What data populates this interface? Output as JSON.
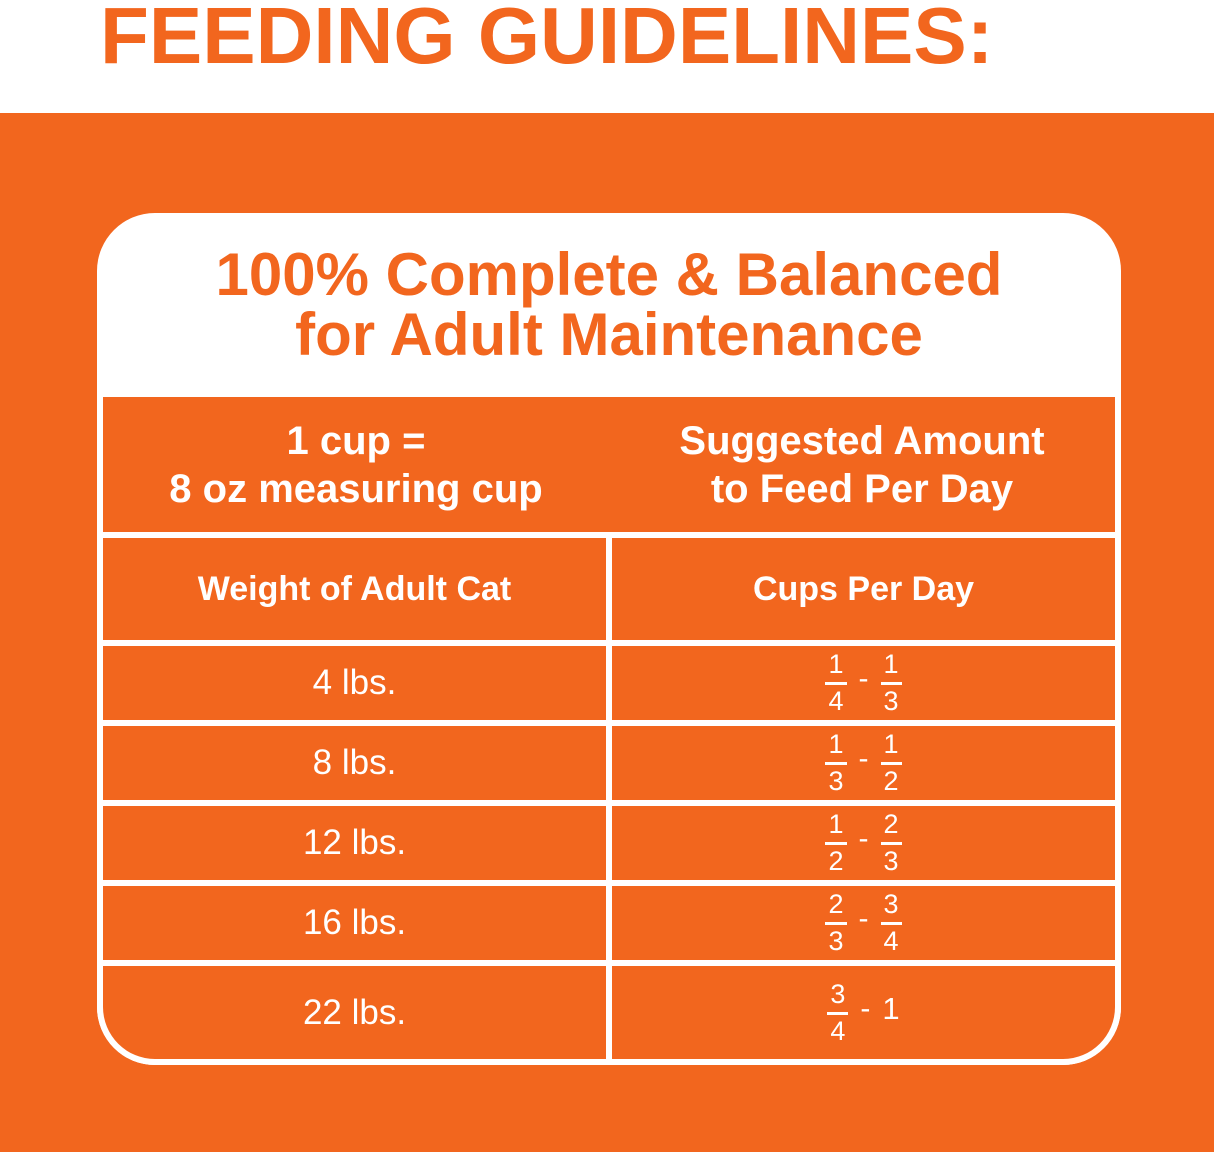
{
  "colors": {
    "orange": "#F2661E",
    "white": "#FFFFFF"
  },
  "heading": "FEEDING GUIDELINES:",
  "card": {
    "title_line1": "100% Complete & Balanced",
    "title_line2": "for Adult Maintenance",
    "band": {
      "left_line1": "1 cup =",
      "left_line2": "8 oz measuring cup",
      "right_line1": "Suggested Amount",
      "right_line2": "to Feed Per Day"
    },
    "table": {
      "col_left": "Weight of Adult Cat",
      "col_right": "Cups Per Day",
      "range_separator": "-",
      "rows": [
        {
          "weight": "4 lbs.",
          "min": {
            "num": "1",
            "den": "4"
          },
          "max": {
            "num": "1",
            "den": "3"
          }
        },
        {
          "weight": "8 lbs.",
          "min": {
            "num": "1",
            "den": "3"
          },
          "max": {
            "num": "1",
            "den": "2"
          }
        },
        {
          "weight": "12 lbs.",
          "min": {
            "num": "1",
            "den": "2"
          },
          "max": {
            "num": "2",
            "den": "3"
          }
        },
        {
          "weight": "16 lbs.",
          "min": {
            "num": "2",
            "den": "3"
          },
          "max": {
            "num": "3",
            "den": "4"
          }
        },
        {
          "weight": "22 lbs.",
          "min": {
            "num": "3",
            "den": "4"
          },
          "max": {
            "whole": "1"
          }
        }
      ]
    }
  }
}
